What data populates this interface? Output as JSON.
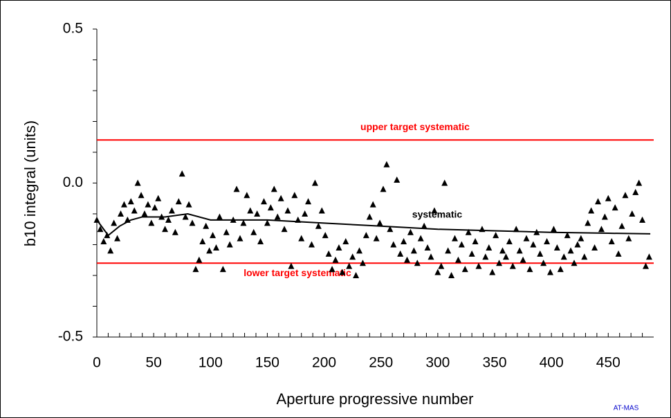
{
  "chart_data": {
    "type": "scatter",
    "x_label": "Aperture progressive number",
    "y_label": "b10 integral (units)",
    "credit": "AT-MAS",
    "xlim": [
      0,
      490
    ],
    "ylim": [
      -0.5,
      0.5
    ],
    "xticks": [
      0,
      50,
      100,
      150,
      200,
      250,
      300,
      350,
      400,
      450
    ],
    "xticks_minor": [
      10,
      20,
      30,
      40,
      60,
      70,
      80,
      90,
      110,
      120,
      130,
      140,
      160,
      170,
      180,
      190,
      210,
      220,
      230,
      240,
      260,
      270,
      280,
      290,
      310,
      320,
      330,
      340,
      360,
      370,
      380,
      390,
      410,
      420,
      430,
      440,
      460,
      470,
      480
    ],
    "yticks": [
      {
        "value": -0.5,
        "label": "-0.5"
      },
      {
        "value": 0,
        "label": "0.0"
      },
      0.5
    ],
    "yticks_minor": [
      -0.4,
      -0.3,
      -0.2,
      -0.1,
      0.1,
      0.2,
      0.3,
      0.4
    ],
    "points": {
      "color": "#000000",
      "x": [
        0,
        3,
        6,
        9,
        12,
        15,
        18,
        21,
        24,
        27,
        30,
        33,
        36,
        39,
        42,
        45,
        48,
        51,
        54,
        57,
        60,
        63,
        66,
        69,
        72,
        75,
        78,
        81,
        84,
        87,
        90,
        93,
        96,
        99,
        102,
        105,
        108,
        111,
        114,
        117,
        120,
        123,
        126,
        129,
        132,
        135,
        138,
        141,
        144,
        147,
        150,
        153,
        156,
        159,
        162,
        165,
        168,
        171,
        174,
        177,
        180,
        183,
        186,
        189,
        192,
        195,
        198,
        201,
        204,
        207,
        210,
        213,
        216,
        219,
        222,
        225,
        228,
        231,
        234,
        237,
        240,
        243,
        246,
        249,
        252,
        255,
        258,
        261,
        264,
        267,
        270,
        273,
        276,
        279,
        282,
        285,
        288,
        291,
        294,
        297,
        300,
        303,
        306,
        309,
        312,
        315,
        318,
        321,
        324,
        327,
        330,
        333,
        336,
        339,
        342,
        345,
        348,
        351,
        354,
        357,
        360,
        363,
        366,
        369,
        372,
        375,
        378,
        381,
        384,
        387,
        390,
        393,
        396,
        399,
        402,
        405,
        408,
        411,
        414,
        417,
        420,
        423,
        426,
        429,
        432,
        435,
        438,
        441,
        444,
        447,
        450,
        453,
        456,
        459,
        462,
        465,
        468,
        471,
        474,
        477,
        480,
        483,
        486
      ],
      "values": [
        -0.12,
        -0.15,
        -0.19,
        -0.17,
        -0.22,
        -0.13,
        -0.18,
        -0.1,
        -0.07,
        -0.12,
        -0.06,
        -0.09,
        0.0,
        -0.04,
        -0.1,
        -0.07,
        -0.13,
        -0.08,
        -0.05,
        -0.11,
        -0.15,
        -0.12,
        -0.09,
        -0.16,
        -0.06,
        0.03,
        -0.11,
        -0.07,
        -0.13,
        -0.28,
        -0.25,
        -0.19,
        -0.14,
        -0.22,
        -0.17,
        -0.21,
        -0.11,
        -0.28,
        -0.16,
        -0.2,
        -0.12,
        -0.02,
        -0.18,
        -0.13,
        -0.04,
        -0.09,
        -0.16,
        -0.1,
        -0.19,
        -0.06,
        -0.13,
        -0.08,
        -0.02,
        -0.11,
        -0.05,
        -0.15,
        -0.09,
        -0.27,
        -0.04,
        -0.12,
        -0.18,
        -0.1,
        -0.06,
        -0.2,
        0.0,
        -0.14,
        -0.09,
        -0.17,
        -0.23,
        -0.28,
        -0.25,
        -0.21,
        -0.29,
        -0.19,
        -0.27,
        -0.24,
        -0.3,
        -0.22,
        -0.26,
        -0.17,
        -0.11,
        -0.07,
        -0.18,
        -0.13,
        -0.02,
        0.06,
        -0.15,
        -0.2,
        0.01,
        -0.23,
        -0.19,
        -0.25,
        -0.16,
        -0.22,
        -0.26,
        -0.18,
        -0.14,
        -0.21,
        -0.24,
        -0.09,
        -0.29,
        -0.27,
        0.0,
        -0.22,
        -0.3,
        -0.18,
        -0.25,
        -0.2,
        -0.28,
        -0.16,
        -0.23,
        -0.19,
        -0.27,
        -0.15,
        -0.24,
        -0.21,
        -0.29,
        -0.17,
        -0.26,
        -0.22,
        -0.24,
        -0.19,
        -0.27,
        -0.15,
        -0.22,
        -0.25,
        -0.18,
        -0.28,
        -0.2,
        -0.16,
        -0.23,
        -0.26,
        -0.19,
        -0.29,
        -0.15,
        -0.21,
        -0.28,
        -0.24,
        -0.17,
        -0.22,
        -0.26,
        -0.2,
        -0.18,
        -0.24,
        -0.13,
        -0.09,
        -0.21,
        -0.06,
        -0.15,
        -0.11,
        -0.05,
        -0.19,
        -0.08,
        -0.23,
        -0.14,
        -0.04,
        -0.18,
        -0.1,
        -0.03,
        0.0,
        -0.12,
        -0.27,
        -0.24
      ]
    },
    "systematic": {
      "label": "systematic",
      "color": "#000000",
      "x": [
        0,
        10,
        20,
        30,
        40,
        60,
        80,
        100,
        150,
        200,
        250,
        300,
        350,
        400,
        450,
        487
      ],
      "values": [
        -0.12,
        -0.17,
        -0.14,
        -0.12,
        -0.11,
        -0.11,
        -0.1,
        -0.12,
        -0.12,
        -0.13,
        -0.14,
        -0.15,
        -0.155,
        -0.16,
        -0.163,
        -0.165
      ]
    },
    "reference_lines": [
      {
        "label": "upper target systematic",
        "value": 0.14,
        "color": "#ff0000"
      },
      {
        "label": "lower target systematic",
        "value": -0.26,
        "color": "#ff0000"
      }
    ]
  }
}
